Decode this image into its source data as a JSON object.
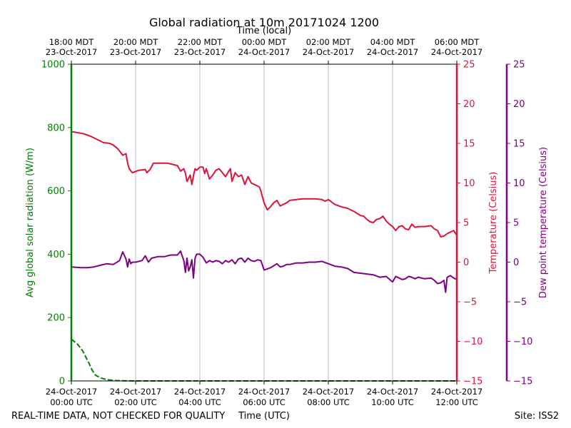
{
  "chart_data": {
    "type": "line",
    "title": "Global radiation at 10m 20171024 1200",
    "top_axis_label": "Time (local)",
    "xlabel": "Time (UTC)",
    "ylabel_left": "Avg global solar radiation (W/m)",
    "ylabel_right1": "Temperature (Celsius)",
    "ylabel_right2": "Dew point temperature (Celsius)",
    "x_range_hours": [
      0,
      12
    ],
    "ylim_left": [
      0,
      1000
    ],
    "ylim_right": [
      -15,
      25
    ],
    "left_ticks": [
      "0",
      "200",
      "400",
      "600",
      "800",
      "1000"
    ],
    "right_ticks": [
      "−15",
      "−10",
      "−5",
      "0",
      "5",
      "10",
      "15",
      "20",
      "25"
    ],
    "bottom_ticks": [
      {
        "hour": 0,
        "l1": "24-Oct-2017",
        "l2": "00:00 UTC"
      },
      {
        "hour": 2,
        "l1": "24-Oct-2017",
        "l2": "02:00 UTC"
      },
      {
        "hour": 4,
        "l1": "24-Oct-2017",
        "l2": "04:00 UTC"
      },
      {
        "hour": 6,
        "l1": "24-Oct-2017",
        "l2": "06:00 UTC"
      },
      {
        "hour": 8,
        "l1": "24-Oct-2017",
        "l2": "08:00 UTC"
      },
      {
        "hour": 10,
        "l1": "24-Oct-2017",
        "l2": "10:00 UTC"
      },
      {
        "hour": 12,
        "l1": "24-Oct-2017",
        "l2": "12:00 UTC"
      }
    ],
    "top_ticks": [
      {
        "hour": 0,
        "l1": "18:00 MDT",
        "l2": "23-Oct-2017"
      },
      {
        "hour": 2,
        "l1": "20:00 MDT",
        "l2": "23-Oct-2017"
      },
      {
        "hour": 4,
        "l1": "22:00 MDT",
        "l2": "23-Oct-2017"
      },
      {
        "hour": 6,
        "l1": "00:00 MDT",
        "l2": "24-Oct-2017"
      },
      {
        "hour": 8,
        "l1": "02:00 MDT",
        "l2": "24-Oct-2017"
      },
      {
        "hour": 10,
        "l1": "04:00 MDT",
        "l2": "24-Oct-2017"
      },
      {
        "hour": 12,
        "l1": "06:00 MDT",
        "l2": "24-Oct-2017"
      }
    ],
    "series": [
      {
        "name": "Avg global solar radiation",
        "axis": "left",
        "color": "#008000",
        "dashed": true,
        "x": [
          0,
          0.2,
          0.35,
          0.45,
          0.55,
          0.65,
          0.75,
          0.9,
          1.1,
          1.4,
          2.0,
          4.0,
          6.0,
          8.0,
          10.0,
          12.0
        ],
        "y": [
          132,
          115,
          95,
          75,
          55,
          33,
          18,
          10,
          4,
          1,
          0,
          0,
          0,
          0,
          0,
          0
        ]
      },
      {
        "name": "Temperature",
        "axis": "right",
        "color": "#dc143c",
        "x": [
          0,
          0.4,
          0.6,
          0.8,
          1.0,
          1.2,
          1.3,
          1.45,
          1.6,
          1.7,
          1.75,
          1.8,
          1.9,
          2.1,
          2.3,
          2.35,
          2.45,
          2.55,
          2.6,
          3.0,
          3.2,
          3.3,
          3.4,
          3.5,
          3.55,
          3.6,
          3.7,
          3.75,
          3.8,
          3.85,
          3.9,
          4.0,
          4.1,
          4.15,
          4.2,
          4.3,
          4.4,
          4.5,
          4.6,
          4.8,
          4.9,
          4.95,
          5.0,
          5.1,
          5.2,
          5.3,
          5.4,
          5.5,
          5.6,
          5.7,
          5.8,
          5.85,
          5.9,
          5.95,
          6.0,
          6.1,
          6.2,
          6.3,
          6.4,
          6.5,
          6.6,
          6.7,
          6.8,
          7.0,
          7.2,
          7.4,
          7.6,
          7.8,
          7.9,
          8.0,
          8.2,
          8.4,
          8.6,
          8.8,
          9.0,
          9.1,
          9.2,
          9.3,
          9.4,
          9.5,
          9.6,
          9.7,
          9.8,
          9.9,
          10.0,
          10.1,
          10.2,
          10.3,
          10.4,
          10.5,
          10.6,
          10.7,
          10.8,
          11.0,
          11.2,
          11.3,
          11.4,
          11.5,
          11.6,
          11.7,
          11.8,
          11.9,
          12.0
        ],
        "y": [
          16.5,
          16.2,
          15.9,
          15.5,
          15.1,
          15.0,
          14.8,
          14.3,
          13.5,
          13.7,
          12.5,
          11.8,
          11.3,
          11.6,
          11.7,
          11.3,
          11.7,
          12.5,
          12.5,
          12.5,
          12.3,
          12.2,
          11.5,
          11.8,
          11.2,
          10.2,
          11.0,
          9.8,
          10.9,
          11.8,
          11.6,
          12.0,
          12.0,
          11.2,
          11.8,
          10.5,
          11.0,
          11.6,
          11.8,
          10.8,
          11.5,
          11.8,
          10.2,
          11.3,
          10.8,
          11.0,
          9.8,
          10.8,
          10.0,
          9.8,
          9.6,
          9.5,
          9.0,
          8.2,
          7.5,
          6.6,
          7.0,
          7.5,
          7.8,
          7.1,
          7.3,
          7.5,
          7.8,
          7.9,
          8.0,
          8.0,
          8.0,
          7.9,
          7.7,
          7.9,
          7.3,
          7.0,
          6.8,
          6.4,
          5.9,
          5.8,
          5.4,
          5.1,
          5.0,
          5.4,
          5.5,
          5.8,
          5.2,
          4.8,
          4.5,
          4.0,
          4.5,
          4.6,
          4.2,
          4.1,
          4.8,
          4.4,
          4.5,
          4.5,
          4.6,
          4.2,
          4.0,
          3.2,
          3.3,
          3.6,
          3.8,
          4.0,
          3.4
        ]
      },
      {
        "name": "Dew point temperature",
        "axis": "right",
        "color": "#800080",
        "x": [
          0,
          0.3,
          0.5,
          0.7,
          0.9,
          1.1,
          1.3,
          1.5,
          1.6,
          1.7,
          1.75,
          1.8,
          1.85,
          1.9,
          2.0,
          2.2,
          2.3,
          2.4,
          2.5,
          2.7,
          2.9,
          3.1,
          3.3,
          3.4,
          3.5,
          3.55,
          3.6,
          3.65,
          3.7,
          3.75,
          3.8,
          3.85,
          3.9,
          4.0,
          4.1,
          4.2,
          4.3,
          4.4,
          4.5,
          4.6,
          4.7,
          4.8,
          4.9,
          5.0,
          5.1,
          5.2,
          5.3,
          5.4,
          5.5,
          5.6,
          5.7,
          5.8,
          5.9,
          6.0,
          6.2,
          6.4,
          6.5,
          6.6,
          6.7,
          6.8,
          7.0,
          7.2,
          7.4,
          7.6,
          7.8,
          8.0,
          8.2,
          8.4,
          8.6,
          8.8,
          9.0,
          9.2,
          9.4,
          9.6,
          9.8,
          10.0,
          10.1,
          10.2,
          10.3,
          10.4,
          10.5,
          10.6,
          10.7,
          10.8,
          11.0,
          11.2,
          11.3,
          11.4,
          11.5,
          11.6,
          11.65,
          11.7,
          11.8,
          11.9,
          12.0
        ],
        "y": [
          -0.6,
          -0.7,
          -0.7,
          -0.6,
          -0.4,
          -0.2,
          -0.3,
          0.2,
          1.3,
          0.4,
          -0.6,
          0.4,
          -0.2,
          0.0,
          0.0,
          0.2,
          0.8,
          0.0,
          0.5,
          0.7,
          0.7,
          0.9,
          0.9,
          1.4,
          0.2,
          -1.3,
          0.5,
          -1.1,
          -0.6,
          0.3,
          -2.0,
          0.5,
          1.0,
          1.0,
          0.6,
          -0.1,
          0.2,
          0.0,
          0.2,
          0.1,
          -0.2,
          0.2,
          0.0,
          0.3,
          -0.2,
          0.4,
          0.5,
          0.0,
          0.5,
          0.2,
          0.1,
          0.3,
          0.2,
          -1.0,
          -0.7,
          -0.2,
          -0.6,
          -0.5,
          -0.3,
          -0.3,
          -0.1,
          -0.1,
          0.0,
          0.0,
          0.1,
          -0.2,
          -0.5,
          -0.6,
          -0.8,
          -1.3,
          -1.4,
          -1.5,
          -1.6,
          -1.9,
          -1.8,
          -2.5,
          -1.8,
          -2.0,
          -2.2,
          -2.1,
          -1.8,
          -1.9,
          -2.1,
          -1.9,
          -2.1,
          -2.0,
          -2.3,
          -2.7,
          -2.6,
          -2.3,
          -3.8,
          -1.9,
          -1.7,
          -2.0,
          -2.2
        ]
      }
    ]
  },
  "footer": {
    "left_note": "REAL-TIME DATA, NOT CHECKED FOR QUALITY",
    "site": "Site: ISS2"
  }
}
